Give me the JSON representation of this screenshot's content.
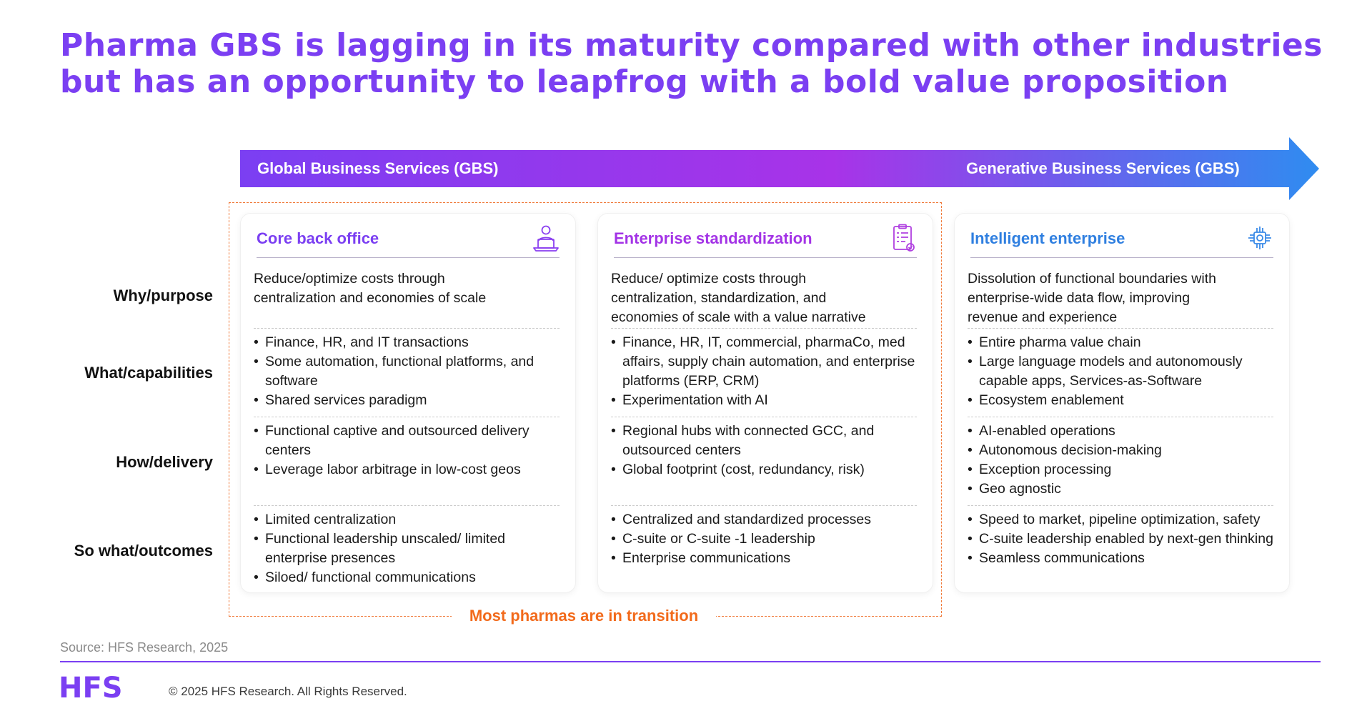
{
  "title": "Pharma GBS is lagging in its maturity compared with other industries but has an opportunity to leapfrog with a bold value proposition",
  "arrow": {
    "left_label": "Global Business Services (GBS)",
    "right_label": "Generative Business Services (GBS)",
    "colors": [
      "#7b3ff2",
      "#a833e8",
      "#2f8cf0"
    ]
  },
  "row_labels": [
    "Why/purpose",
    "What/capabilities",
    "How/delivery",
    "So what/outcomes"
  ],
  "transition_label": "Most pharmas are in transition",
  "cards": [
    {
      "title": "Core back office",
      "title_color": "#7b3ff2",
      "icon": "person-at-laptop-icon",
      "why": [
        "Reduce/optimize costs through",
        "centralization and economies of scale"
      ],
      "what": [
        "Finance, HR, and IT transactions",
        "Some automation, functional platforms, and software",
        "Shared services paradigm"
      ],
      "how": [
        "Functional captive and outsourced delivery centers",
        "Leverage labor arbitrage in low-cost geos"
      ],
      "outcomes": [
        "Limited centralization",
        "Functional leadership unscaled/ limited enterprise presences",
        "Siloed/ functional communications"
      ]
    },
    {
      "title": "Enterprise standardization",
      "title_color": "#a333e6",
      "icon": "clipboard-checklist-icon",
      "why": [
        "Reduce/ optimize costs through",
        "centralization, standardization, and",
        "economies of scale with a value narrative"
      ],
      "what": [
        "Finance, HR, IT, commercial, pharmaCo, med affairs, supply chain automation, and enterprise platforms (ERP, CRM)",
        "Experimentation with AI"
      ],
      "how": [
        "Regional hubs with connected GCC, and outsourced centers",
        "Global footprint (cost, redundancy, risk)"
      ],
      "outcomes": [
        "Centralized and standardized processes",
        "C-suite or C-suite -1 leadership",
        "Enterprise communications"
      ]
    },
    {
      "title": "Intelligent enterprise",
      "title_color": "#2f7fe0",
      "icon": "ai-chip-icon",
      "why": [
        "Dissolution of functional boundaries with",
        "enterprise-wide data flow, improving",
        "revenue and experience"
      ],
      "what": [
        "Entire pharma value chain",
        "Large language models and autonomously capable apps, Services-as-Software",
        "Ecosystem enablement"
      ],
      "how": [
        "AI-enabled operations",
        "Autonomous decision-making",
        "Exception processing",
        "Geo agnostic"
      ],
      "outcomes": [
        "Speed to market, pipeline optimization, safety",
        "C-suite leadership enabled by next-gen thinking",
        "Seamless communications"
      ]
    }
  ],
  "source": "Source: HFS Research, 2025",
  "logo_text": "HFS",
  "copyright": "© 2025 HFS Research. All Rights Reserved."
}
